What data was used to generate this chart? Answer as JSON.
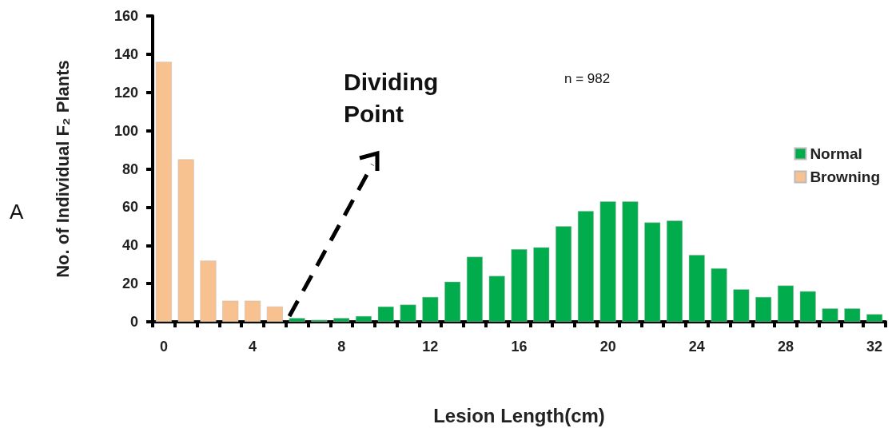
{
  "chart_data": {
    "type": "bar",
    "xlabel": "Lesion Length(cm)",
    "ylabel": "No. of Individual F₂ Plants",
    "categories": [
      "0",
      null,
      null,
      null,
      "4",
      null,
      null,
      null,
      "8",
      null,
      null,
      null,
      "12",
      null,
      null,
      null,
      "16",
      null,
      null,
      null,
      "20",
      null,
      null,
      null,
      "24",
      null,
      null,
      null,
      "28",
      null,
      null,
      null,
      "32"
    ],
    "series": [
      {
        "name": "Normal",
        "color": "#00ac4c",
        "values": [
          null,
          null,
          null,
          null,
          null,
          null,
          2,
          1,
          2,
          3,
          8,
          9,
          13,
          21,
          34,
          24,
          38,
          39,
          50,
          58,
          63,
          63,
          52,
          53,
          35,
          28,
          17,
          13,
          19,
          16,
          7,
          7,
          4
        ]
      },
      {
        "name": "Browning",
        "color": "#f8c290",
        "values": [
          136,
          85,
          32,
          11,
          11,
          8,
          null,
          null,
          null,
          null,
          null,
          null,
          null,
          null,
          null,
          null,
          null,
          null,
          null,
          null,
          null,
          null,
          null,
          null,
          null,
          null,
          null,
          null,
          null,
          null,
          null,
          null,
          null
        ]
      }
    ],
    "ylim": [
      0,
      160
    ],
    "yticks": [
      0,
      20,
      40,
      60,
      80,
      100,
      120,
      140,
      160
    ],
    "grid": false,
    "legend": "top right",
    "annotations": [
      "A",
      "n = 982",
      "Dividing Point"
    ]
  }
}
